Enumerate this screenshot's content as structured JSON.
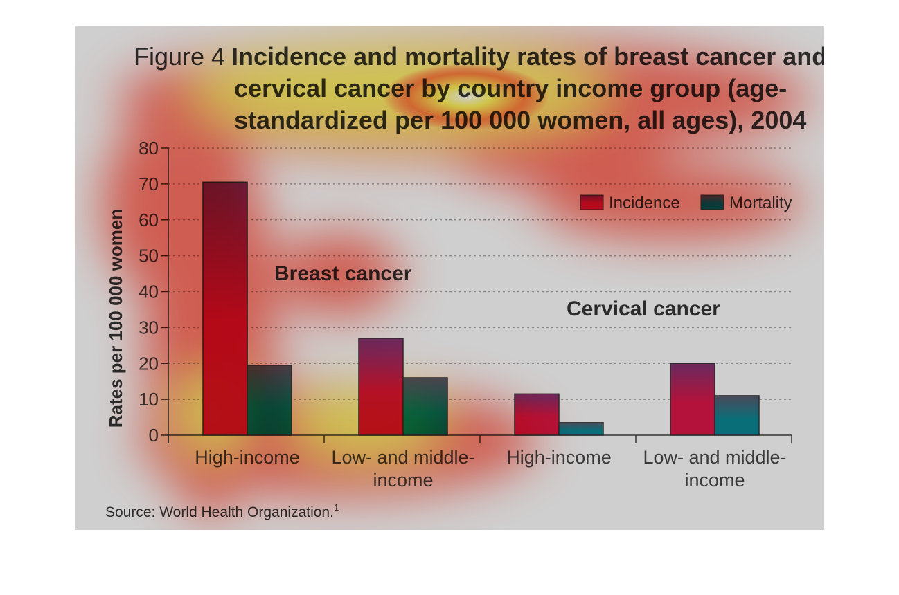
{
  "chart_data": {
    "type": "bar",
    "title_prefix": "Figure 4",
    "title_lines": [
      "Incidence and mortality rates of breast cancer and",
      "cervical cancer by country income group (age-",
      "standardized per 100 000 women, all ages), 2004"
    ],
    "ylabel": "Rates per 100 000 women",
    "ylim": [
      0,
      80
    ],
    "yticks": [
      "0",
      "10",
      "20",
      "30",
      "40",
      "50",
      "60",
      "70",
      "80"
    ],
    "grid": true,
    "legend_position": "top-right",
    "groups": [
      {
        "name": "Breast cancer",
        "categories": [
          [
            "High-income"
          ],
          [
            "Low- and middle-",
            "income"
          ]
        ]
      },
      {
        "name": "Cervical cancer",
        "categories": [
          [
            "High-income"
          ],
          [
            "Low- and middle-",
            "income"
          ]
        ]
      }
    ],
    "categories": [
      "High-income",
      "Low- and middle-income",
      "High-income",
      "Low- and middle-income"
    ],
    "series": [
      {
        "name": "Incidence",
        "values": [
          70.5,
          27,
          11.5,
          20
        ]
      },
      {
        "name": "Mortality",
        "values": [
          19.5,
          16,
          3.5,
          11
        ]
      }
    ],
    "colors": {
      "incidence_top": "#6a2a5e",
      "incidence_bottom": "#b4123a",
      "mortality_top": "#4a4a5a",
      "mortality_bottom": "#0a6e78"
    },
    "source": "Source: World Health Organization.",
    "source_superscript": "1"
  }
}
